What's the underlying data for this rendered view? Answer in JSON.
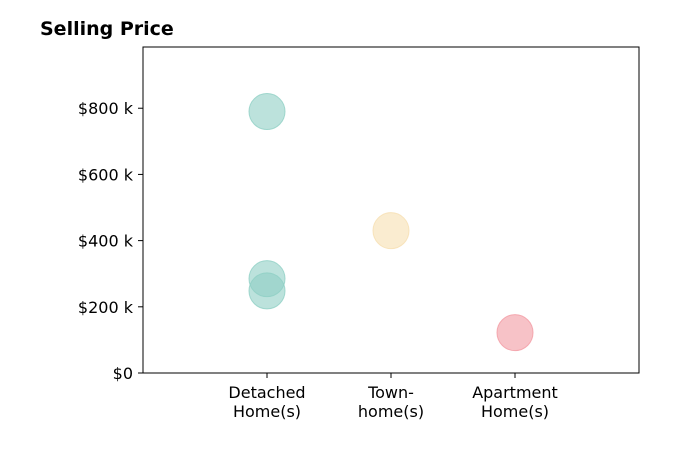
{
  "chart_data": {
    "type": "scatter",
    "title": "Selling Price",
    "xlabel": "",
    "ylabel": "",
    "categories": [
      [
        "Detached",
        "Home(s)"
      ],
      [
        "Town-",
        "home(s)"
      ],
      [
        "Apartment",
        "Home(s)"
      ]
    ],
    "y_ticks": [
      {
        "value": 0,
        "label": "$0"
      },
      {
        "value": 200,
        "label": "$200 k"
      },
      {
        "value": 400,
        "label": "$400 k"
      },
      {
        "value": 600,
        "label": "$600 k"
      },
      {
        "value": 800,
        "label": "$800 k"
      }
    ],
    "ylim": [
      0,
      985
    ],
    "xlim": [
      0,
      4
    ],
    "grid": false,
    "points": [
      {
        "category": "Detached Home(s)",
        "x": 1,
        "y": 790,
        "color": "#8fcfc4"
      },
      {
        "category": "Detached Home(s)",
        "x": 1,
        "y": 285,
        "color": "#8fcfc4"
      },
      {
        "category": "Detached Home(s)",
        "x": 1,
        "y": 248,
        "color": "#8fcfc4"
      },
      {
        "category": "Town-home(s)",
        "x": 2,
        "y": 430,
        "color": "#f6dfb0"
      },
      {
        "category": "Apartment Home(s)",
        "x": 3,
        "y": 122,
        "color": "#f29aa2"
      }
    ]
  }
}
